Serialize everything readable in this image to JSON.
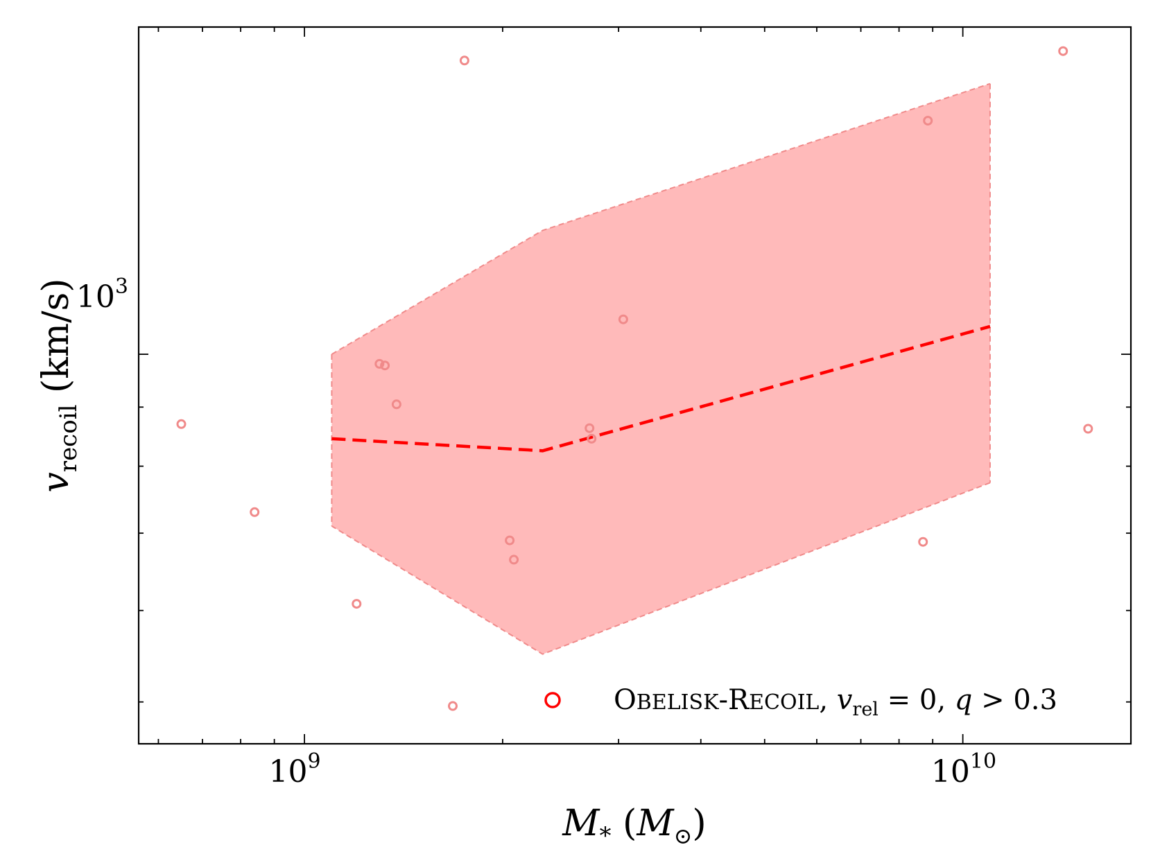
{
  "chart_data": {
    "type": "scatter",
    "xscale": "log",
    "yscale": "log",
    "xlim": [
      560000000,
      18000000000
    ],
    "ylim": [
      460,
      1920
    ],
    "xlabel": {
      "var": "M",
      "sub": "*",
      "unit": "M",
      "unit_sub": "⊙"
    },
    "ylabel": {
      "var": "v",
      "sub": "recoil",
      "unit": "(km/s)"
    },
    "xticks": [
      {
        "value": 1000000000,
        "base": "10",
        "exp": "9"
      },
      {
        "value": 10000000000,
        "base": "10",
        "exp": "10"
      }
    ],
    "yticks": [
      {
        "value": 1000,
        "base": "10",
        "exp": "3"
      }
    ],
    "median_line": {
      "x": [
        1100000000,
        2300000000,
        11000000000
      ],
      "y": [
        845,
        825,
        1057
      ]
    },
    "band": {
      "x": [
        1100000000,
        2300000000,
        11000000000
      ],
      "lower": [
        710,
        550,
        774
      ],
      "upper": [
        1000,
        1280,
        1715
      ]
    },
    "points": [
      {
        "x": 650000000,
        "y": 870
      },
      {
        "x": 840000000,
        "y": 730
      },
      {
        "x": 1200000000,
        "y": 608
      },
      {
        "x": 1300000000,
        "y": 981
      },
      {
        "x": 1325000000,
        "y": 978
      },
      {
        "x": 1380000000,
        "y": 905
      },
      {
        "x": 1680000000,
        "y": 496
      },
      {
        "x": 1750000000,
        "y": 1796
      },
      {
        "x": 2050000000,
        "y": 690
      },
      {
        "x": 2080000000,
        "y": 664
      },
      {
        "x": 2710000000,
        "y": 863
      },
      {
        "x": 2730000000,
        "y": 845
      },
      {
        "x": 3050000000,
        "y": 1072
      },
      {
        "x": 8700000000,
        "y": 688
      },
      {
        "x": 8850000000,
        "y": 1593
      },
      {
        "x": 14200000000,
        "y": 1830
      },
      {
        "x": 15500000000,
        "y": 862
      }
    ],
    "legend": {
      "position": "bottom-right",
      "label": {
        "name_big1": "O",
        "name_small1": "BELISK",
        "dash": "-",
        "name_big2": "R",
        "name_small2": "ECOIL",
        "sep1": ", ",
        "var": "v",
        "var_sub": "rel",
        "eq": " = 0, ",
        "q": "q",
        "cond": " > 0.3"
      }
    },
    "colors": {
      "band_fill": "#ffbaba",
      "band_edge": "#f08a8a",
      "median": "#ff0000",
      "points": "#f08a8a",
      "legend_marker": "#ff0000"
    }
  }
}
